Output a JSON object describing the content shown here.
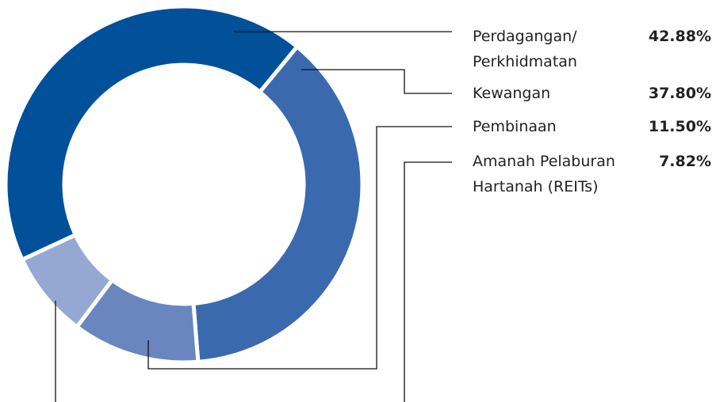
{
  "chart_data": {
    "type": "donut",
    "categories": [
      "Perdagangan/ Perkhidmatan",
      "Kewangan",
      "Pembinaan",
      "Amanah Pelaburan Hartanah (REITs)"
    ],
    "values": [
      42.88,
      37.8,
      11.5,
      7.82
    ],
    "value_labels": [
      "42.88%",
      "37.80%",
      "11.50%",
      "7.82%"
    ],
    "colors": [
      "#00509a",
      "#3a6aad",
      "#6a86bf",
      "#94a8d3"
    ]
  }
}
